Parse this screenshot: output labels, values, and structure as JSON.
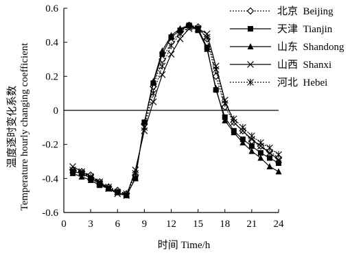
{
  "chart_data": {
    "type": "line",
    "title": "",
    "xlabel": "时间  Time/h",
    "ylabel_line1": "温度逐时变化系数",
    "ylabel_line2": "Temperature hourly changing coefficient",
    "xlim": [
      0,
      24
    ],
    "ylim": [
      -0.6,
      0.6
    ],
    "x_ticks": [
      0,
      3,
      6,
      9,
      12,
      15,
      18,
      21,
      24
    ],
    "y_ticks": [
      0.6,
      0.4,
      0.2,
      0,
      -0.2,
      -0.4,
      -0.6
    ],
    "y_tick_labels": [
      "0.6",
      "0.4",
      "0.2",
      "0",
      "-0.2",
      "-0.4",
      "-0.6"
    ],
    "grid": false,
    "zero_line": true,
    "legend_position": "top-right",
    "x": [
      1,
      2,
      3,
      4,
      5,
      6,
      7,
      8,
      9,
      10,
      11,
      12,
      13,
      14,
      15,
      16,
      17,
      18,
      19,
      20,
      21,
      22,
      23,
      24
    ],
    "series": [
      {
        "name": "北京  Beijing",
        "marker": "diamond-open",
        "line": "dotted",
        "values": [
          -0.35,
          -0.36,
          -0.38,
          -0.42,
          -0.45,
          -0.47,
          -0.49,
          -0.38,
          -0.08,
          0.14,
          0.3,
          0.4,
          0.46,
          0.5,
          0.49,
          0.42,
          0.2,
          0.02,
          -0.07,
          -0.12,
          -0.18,
          -0.21,
          -0.24,
          -0.28
        ]
      },
      {
        "name": "天津  Tianjin",
        "marker": "square-filled",
        "line": "solid",
        "values": [
          -0.36,
          -0.37,
          -0.4,
          -0.43,
          -0.46,
          -0.48,
          -0.5,
          -0.4,
          -0.07,
          0.16,
          0.33,
          0.43,
          0.47,
          0.5,
          0.48,
          0.37,
          0.12,
          -0.04,
          -0.12,
          -0.17,
          -0.21,
          -0.25,
          -0.28,
          -0.31
        ]
      },
      {
        "name": "山东  Shandong",
        "marker": "triangle-filled",
        "line": "solid",
        "values": [
          -0.37,
          -0.39,
          -0.41,
          -0.44,
          -0.46,
          -0.48,
          -0.5,
          -0.4,
          -0.07,
          0.17,
          0.35,
          0.44,
          0.48,
          0.5,
          0.47,
          0.36,
          0.13,
          -0.06,
          -0.13,
          -0.19,
          -0.24,
          -0.28,
          -0.33,
          -0.36
        ]
      },
      {
        "name": "山西  Shanxi",
        "marker": "x",
        "line": "solid",
        "values": [
          -0.33,
          -0.36,
          -0.39,
          -0.42,
          -0.46,
          -0.49,
          -0.5,
          -0.35,
          -0.12,
          0.05,
          0.21,
          0.33,
          0.42,
          0.48,
          0.48,
          0.45,
          0.26,
          0.06,
          -0.07,
          -0.12,
          -0.17,
          -0.21,
          -0.25,
          -0.29
        ]
      },
      {
        "name": "河北  Hebei",
        "marker": "asterisk",
        "line": "dotted",
        "values": [
          -0.35,
          -0.37,
          -0.39,
          -0.43,
          -0.45,
          -0.48,
          -0.49,
          -0.37,
          -0.1,
          0.1,
          0.26,
          0.38,
          0.45,
          0.49,
          0.48,
          0.43,
          0.24,
          0.04,
          -0.05,
          -0.1,
          -0.15,
          -0.19,
          -0.22,
          -0.26
        ]
      }
    ]
  }
}
